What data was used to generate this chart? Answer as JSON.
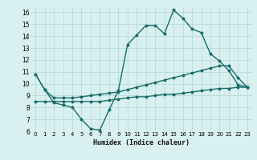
{
  "xlabel": "Humidex (Indice chaleur)",
  "x_values": [
    0,
    1,
    2,
    3,
    4,
    5,
    6,
    7,
    8,
    9,
    10,
    11,
    12,
    13,
    14,
    15,
    16,
    17,
    18,
    19,
    20,
    21,
    22,
    23
  ],
  "main_line": [
    10.8,
    9.5,
    8.4,
    8.2,
    8.0,
    7.0,
    6.2,
    6.1,
    7.8,
    9.4,
    13.3,
    14.1,
    14.9,
    14.9,
    14.2,
    16.2,
    15.5,
    14.6,
    14.3,
    12.5,
    11.9,
    11.1,
    9.9,
    9.7
  ],
  "upper_line": [
    10.8,
    9.5,
    8.8,
    8.8,
    8.8,
    8.9,
    9.0,
    9.1,
    9.2,
    9.3,
    9.5,
    9.7,
    9.9,
    10.1,
    10.3,
    10.5,
    10.7,
    10.9,
    11.1,
    11.3,
    11.5,
    11.5,
    10.5,
    9.7
  ],
  "lower_line": [
    8.5,
    8.5,
    8.5,
    8.5,
    8.5,
    8.5,
    8.5,
    8.5,
    8.6,
    8.7,
    8.8,
    8.9,
    8.9,
    9.0,
    9.1,
    9.1,
    9.2,
    9.3,
    9.4,
    9.5,
    9.6,
    9.6,
    9.7,
    9.7
  ],
  "line_color": "#1a6b6b",
  "bg_color": "#d8f0f0",
  "grid_color": "#b8dada",
  "ylim": [
    6,
    16.5
  ],
  "yticks": [
    6,
    7,
    8,
    9,
    10,
    11,
    12,
    13,
    14,
    15,
    16
  ],
  "xlim": [
    -0.5,
    23.5
  ]
}
